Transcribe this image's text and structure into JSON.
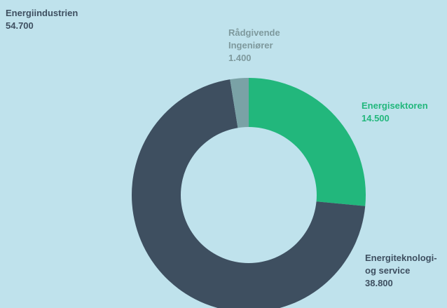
{
  "chart_data": {
    "type": "pie",
    "title": "Energiindustrien",
    "total_label": "54.700",
    "slices": [
      {
        "name": "Energisektoren",
        "value": 14500,
        "value_label": "14.500",
        "label_lines": [
          "Energisektoren"
        ],
        "color": "#22b77c",
        "label_color": "#22b77c"
      },
      {
        "name": "Energiteknologi- og service",
        "value": 38800,
        "value_label": "38.800",
        "label_lines": [
          "Energiteknologi-",
          "og service"
        ],
        "color": "#3e4f60",
        "label_color": "#3e4f60"
      },
      {
        "name": "Rådgivende Ingeniører",
        "value": 1400,
        "value_label": "1.400",
        "label_lines": [
          "Rådgivende",
          "Ingeniører"
        ],
        "color": "#7aa2a6",
        "label_color": "#7e999d"
      }
    ],
    "legend": "none",
    "style": "donut"
  }
}
